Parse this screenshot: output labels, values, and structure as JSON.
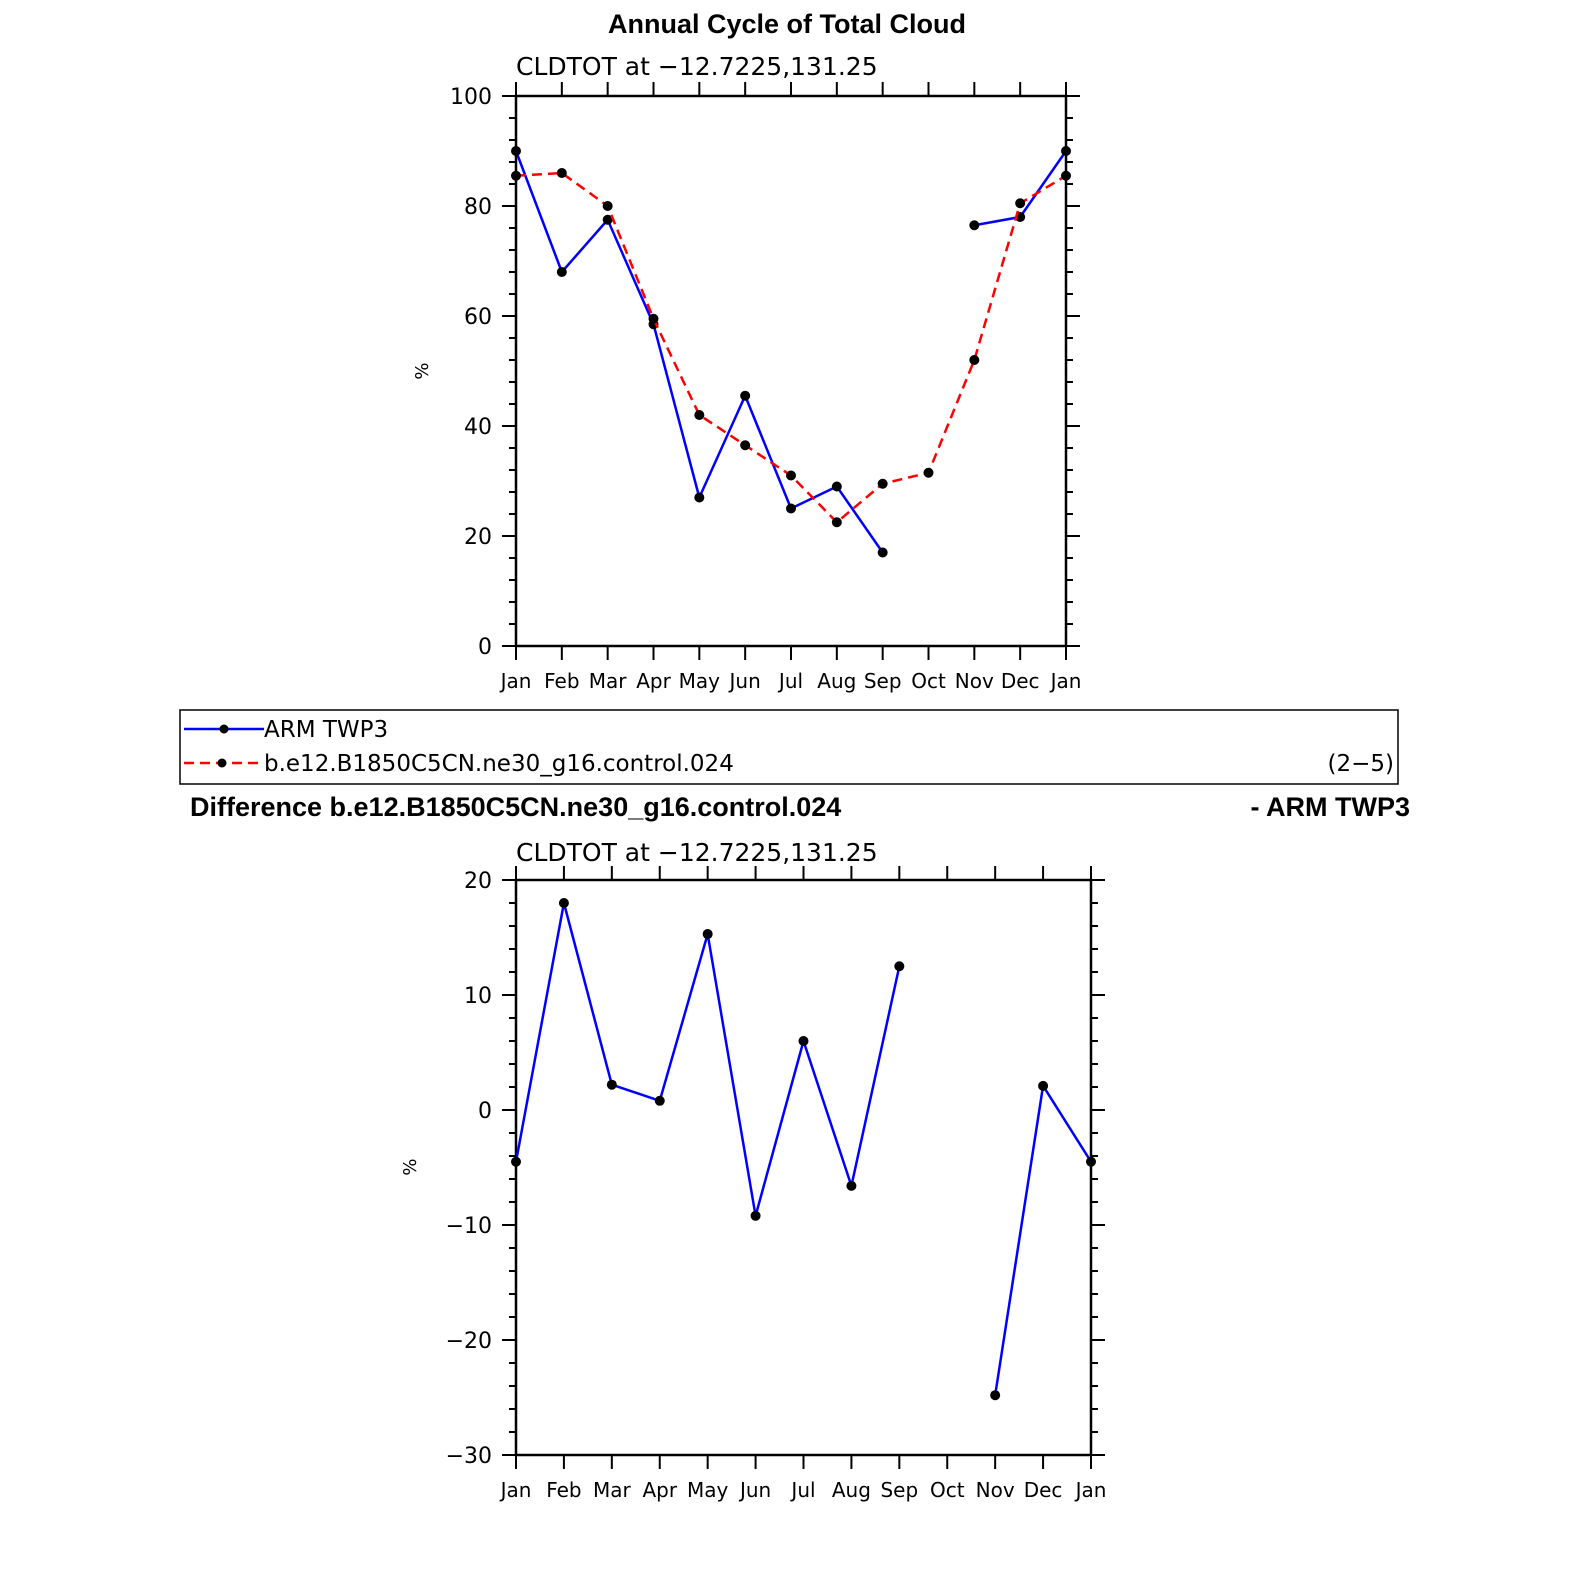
{
  "chart_data": [
    {
      "type": "line",
      "title": "Annual Cycle of Total Cloud",
      "subtitle": "CLDTOT at −12.7225,131.25",
      "ylabel": "%",
      "ylim": [
        0,
        100
      ],
      "yticks": [
        0,
        20,
        40,
        60,
        80,
        100
      ],
      "categories": [
        "Jan",
        "Feb",
        "Mar",
        "Apr",
        "May",
        "Jun",
        "Jul",
        "Aug",
        "Sep",
        "Oct",
        "Nov",
        "Dec",
        "Jan"
      ],
      "series": [
        {
          "name": "ARM TWP3",
          "color": "#0000ff",
          "dash": "solid",
          "values": [
            90,
            68,
            77.5,
            58.5,
            27,
            45.5,
            25,
            29,
            17,
            null,
            76.5,
            78,
            90
          ]
        },
        {
          "name": "b.e12.B1850C5CN.ne30_g16.control.024",
          "color": "#ff0000",
          "dash": "dashed",
          "values": [
            85.5,
            86,
            80,
            59.5,
            42,
            36.5,
            31,
            22.5,
            29.5,
            31.5,
            52,
            80.5,
            85.5
          ]
        }
      ]
    },
    {
      "type": "line",
      "title_left": "Difference b.e12.B1850C5CN.ne30_g16.control.024",
      "title_right": "- ARM TWP3",
      "subtitle": "CLDTOT at −12.7225,131.25",
      "ylabel": "%",
      "ylim": [
        -30,
        20
      ],
      "yticks": [
        -30,
        -20,
        -10,
        0,
        10,
        20
      ],
      "ytick_labels": [
        "−30",
        "−20",
        "−10",
        "0",
        "10",
        "20"
      ],
      "categories": [
        "Jan",
        "Feb",
        "Mar",
        "Apr",
        "May",
        "Jun",
        "Jul",
        "Aug",
        "Sep",
        "Oct",
        "Nov",
        "Dec",
        "Jan"
      ],
      "series": [
        {
          "name": "Difference",
          "color": "#0000ff",
          "dash": "solid",
          "values": [
            -4.5,
            18,
            2.2,
            0.8,
            15.3,
            -9.2,
            6,
            -6.6,
            12.5,
            null,
            -24.8,
            2.1,
            -4.5
          ]
        }
      ]
    }
  ],
  "legend": {
    "items": [
      "ARM TWP3",
      "b.e12.B1850C5CN.ne30_g16.control.024"
    ],
    "panel_label": "(2−5)"
  }
}
